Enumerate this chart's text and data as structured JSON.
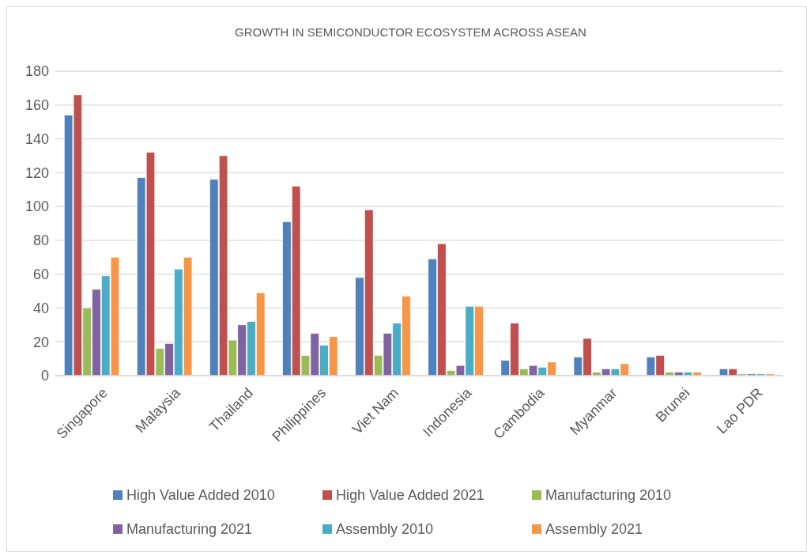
{
  "chart_data": {
    "type": "bar",
    "title": "GROWTH IN SEMICONDUCTOR ECOSYSTEM ACROSS ASEAN",
    "categories": [
      "Singapore",
      "Malaysia",
      "Thailand",
      "Philippines",
      "Viet Nam",
      "Indonesia",
      "Cambodia",
      "Myanmar",
      "Brunei",
      "Lao PDR"
    ],
    "series": [
      {
        "name": "High Value Added 2010",
        "color": "#4f81bd",
        "values": [
          154,
          117,
          116,
          91,
          58,
          69,
          9,
          11,
          11,
          4
        ]
      },
      {
        "name": "High Value Added 2021",
        "color": "#c0504d",
        "values": [
          166,
          132,
          130,
          112,
          98,
          78,
          31,
          22,
          12,
          4
        ]
      },
      {
        "name": "Manufacturing 2010",
        "color": "#9bbb59",
        "values": [
          40,
          16,
          21,
          12,
          12,
          3,
          4,
          2,
          2,
          1
        ]
      },
      {
        "name": "Manufacturing 2021",
        "color": "#8064a2",
        "values": [
          51,
          19,
          30,
          25,
          25,
          6,
          6,
          4,
          2,
          1
        ]
      },
      {
        "name": "Assembly 2010",
        "color": "#4bacc6",
        "values": [
          59,
          63,
          32,
          18,
          31,
          41,
          5,
          4,
          2,
          1
        ]
      },
      {
        "name": "Assembly 2021",
        "color": "#f79646",
        "values": [
          70,
          70,
          49,
          23,
          47,
          41,
          8,
          7,
          2,
          1
        ]
      }
    ],
    "ylim": [
      0,
      180
    ],
    "yticks": [
      0,
      20,
      40,
      60,
      80,
      100,
      120,
      140,
      160,
      180
    ],
    "grid": "y",
    "legend": "bottom"
  }
}
